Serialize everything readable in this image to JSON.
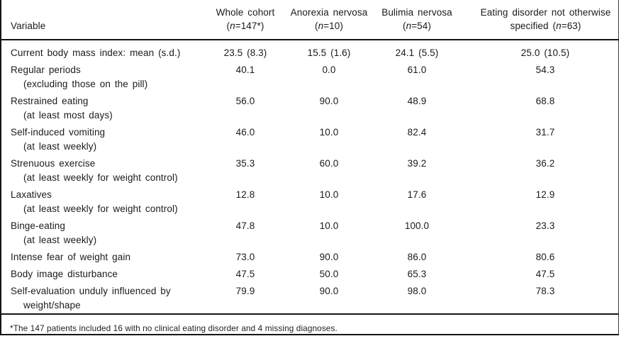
{
  "table": {
    "columns": [
      {
        "label": "Variable"
      },
      {
        "line1": "Whole cohort",
        "sub_pre": "(",
        "n": "n",
        "sub_post": "=147*)"
      },
      {
        "line1": "Anorexia nervosa",
        "sub_pre": "(",
        "n": "n",
        "sub_post": "=10)"
      },
      {
        "line1": "Bulimia nervosa",
        "sub_pre": "(",
        "n": "n",
        "sub_post": "=54)"
      },
      {
        "line1": "Eating disorder not otherwise",
        "sub_pre": "specified (",
        "n": "n",
        "sub_post": "=63)"
      }
    ],
    "rows": [
      {
        "variable": "Current body mass index: mean (s.d.)",
        "sub": "",
        "values": [
          "23.5 (8.3)",
          "15.5 (1.6)",
          "24.1 (5.5)",
          "25.0 (10.5)"
        ]
      },
      {
        "variable": "Regular periods",
        "sub": "(excluding those on the pill)",
        "values": [
          "40.1",
          "0.0",
          "61.0",
          "54.3"
        ]
      },
      {
        "variable": "Restrained eating",
        "sub": "(at least most days)",
        "values": [
          "56.0",
          "90.0",
          "48.9",
          "68.8"
        ]
      },
      {
        "variable": "Self-induced vomiting",
        "sub": "(at least weekly)",
        "values": [
          "46.0",
          "10.0",
          "82.4",
          "31.7"
        ]
      },
      {
        "variable": "Strenuous exercise",
        "sub": "(at least weekly for weight control)",
        "values": [
          "35.3",
          "60.0",
          "39.2",
          "36.2"
        ]
      },
      {
        "variable": "Laxatives",
        "sub": "(at least weekly for weight control)",
        "values": [
          "12.8",
          "10.0",
          "17.6",
          "12.9"
        ]
      },
      {
        "variable": "Binge-eating",
        "sub": "(at least weekly)",
        "values": [
          "47.8",
          "10.0",
          "100.0",
          "23.3"
        ]
      },
      {
        "variable": "Intense fear of weight gain",
        "sub": "",
        "values": [
          "73.0",
          "90.0",
          "86.0",
          "80.6"
        ]
      },
      {
        "variable": "Body image disturbance",
        "sub": "",
        "values": [
          "47.5",
          "50.0",
          "65.3",
          "47.5"
        ]
      },
      {
        "variable": "Self-evaluation unduly influenced by",
        "sub": "weight/shape",
        "values": [
          "79.9",
          "90.0",
          "98.0",
          "78.3"
        ]
      }
    ],
    "footnote": "*The 147 patients included 16 with no clinical eating disorder and 4 missing diagnoses.",
    "colors": {
      "rule": "#151515",
      "text": "#1b1b1b",
      "background": "#ffffff"
    }
  }
}
